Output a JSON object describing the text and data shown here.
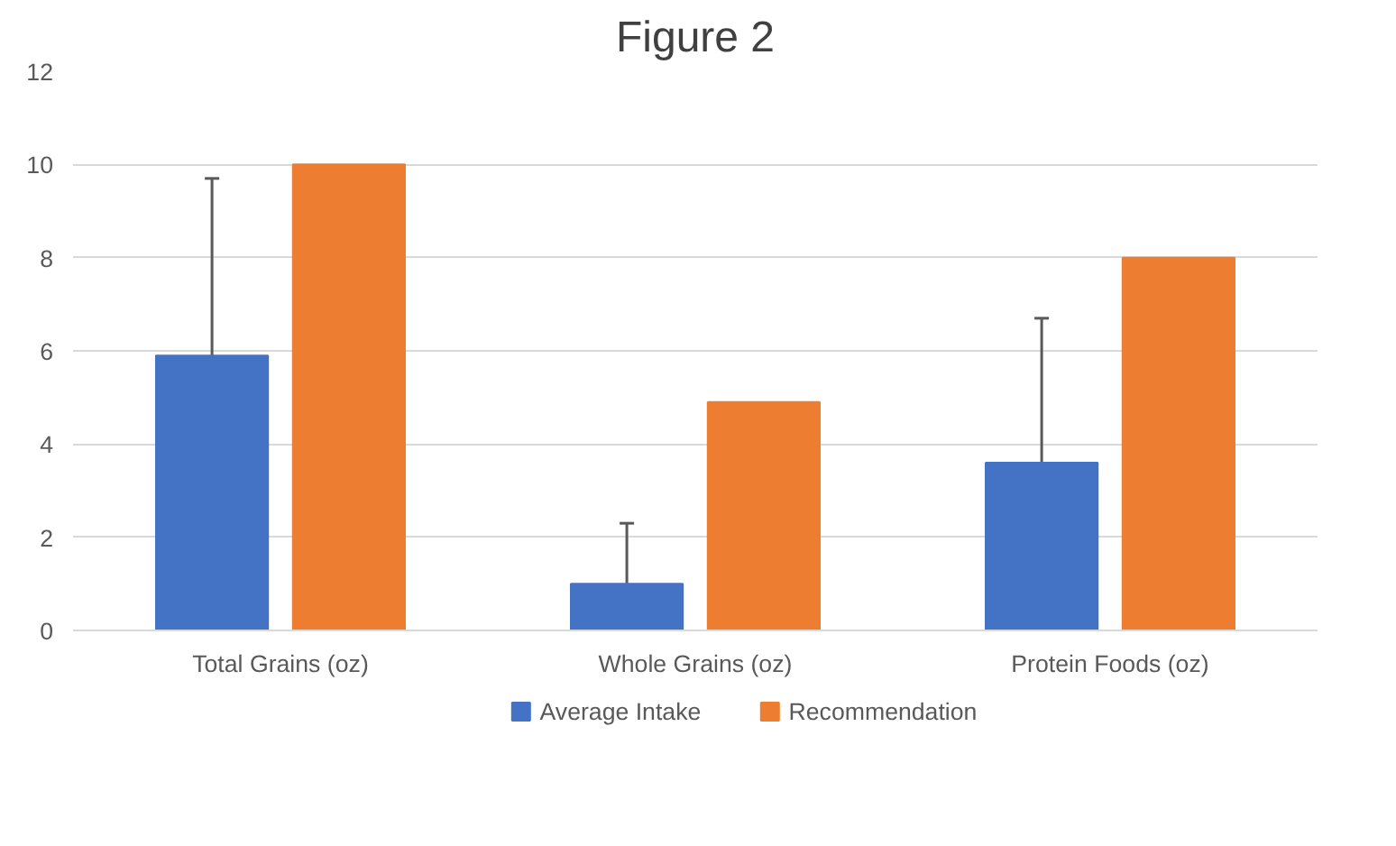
{
  "chart_data": {
    "type": "bar",
    "title": "Figure 2",
    "categories": [
      "Total Grains (oz)",
      "Whole Grains (oz)",
      "Protein Foods (oz)"
    ],
    "series": [
      {
        "name": "Average Intake",
        "color": "#4472c4",
        "values": [
          5.9,
          1.0,
          3.6
        ],
        "errors": [
          [
            5.9,
            9.7
          ],
          [
            1.0,
            2.3
          ],
          [
            3.6,
            6.7
          ]
        ]
      },
      {
        "name": "Recommendation",
        "color": "#ed7d31",
        "values": [
          10,
          4.9,
          8
        ]
      }
    ],
    "ylim": [
      0,
      12
    ],
    "yticks": [
      0,
      2,
      4,
      6,
      8,
      10,
      12
    ],
    "grid": "y",
    "legend": "bottom"
  }
}
